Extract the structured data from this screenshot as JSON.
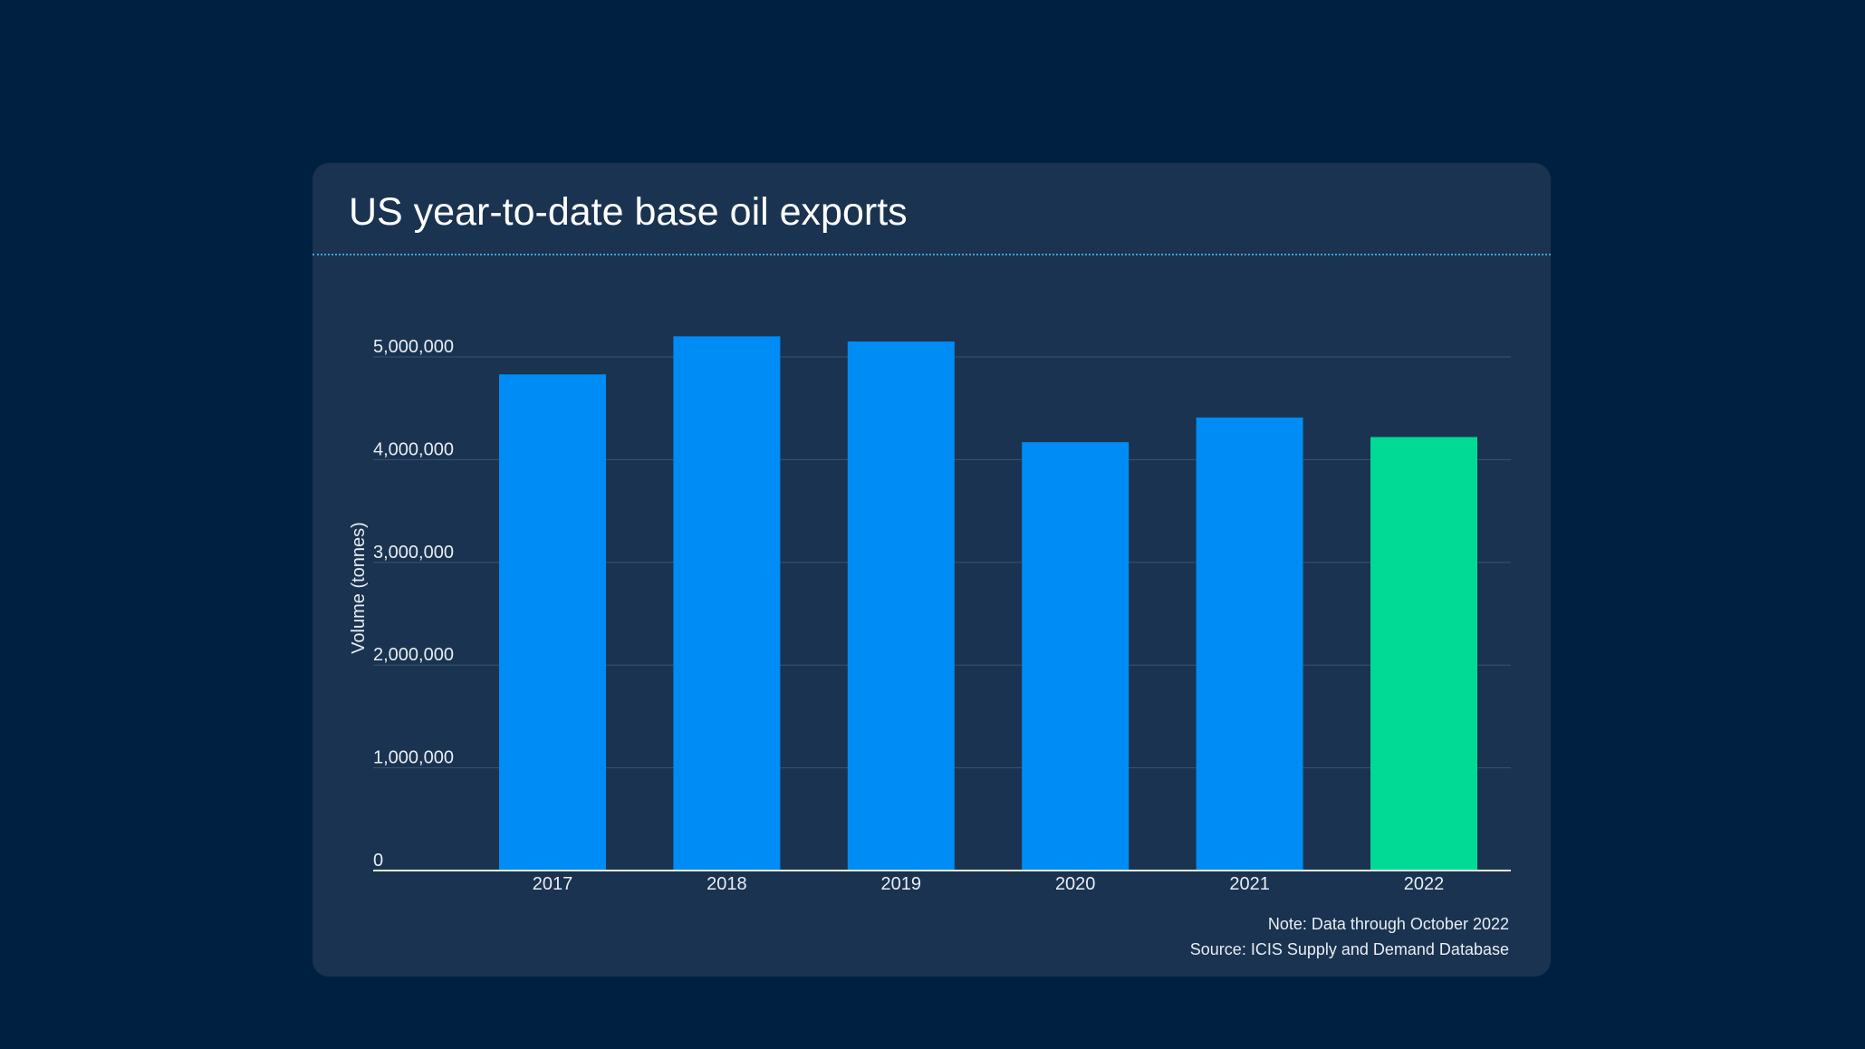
{
  "chart_data": {
    "type": "bar",
    "title": "US year-to-date base oil exports",
    "xlabel": "",
    "ylabel": "Volume (tonnes)",
    "categories": [
      "2017",
      "2018",
      "2019",
      "2020",
      "2021",
      "2022"
    ],
    "values": [
      4830000,
      5200000,
      5150000,
      4170000,
      4410000,
      4220000
    ],
    "colors": [
      "#008cf5",
      "#008cf5",
      "#008cf5",
      "#008cf5",
      "#008cf5",
      "#00da95"
    ],
    "ylim": [
      0,
      5000000
    ],
    "yticks": [
      0,
      1000000,
      2000000,
      3000000,
      4000000,
      5000000
    ],
    "ytick_labels": [
      "0",
      "1,000,000",
      "2,000,000",
      "3,000,000",
      "4,000,000",
      "5,000,000"
    ],
    "grid": true,
    "legend": "none"
  },
  "notes": {
    "note": "Note: Data through October 2022",
    "source": "Source: ICIS Supply and Demand Database"
  }
}
